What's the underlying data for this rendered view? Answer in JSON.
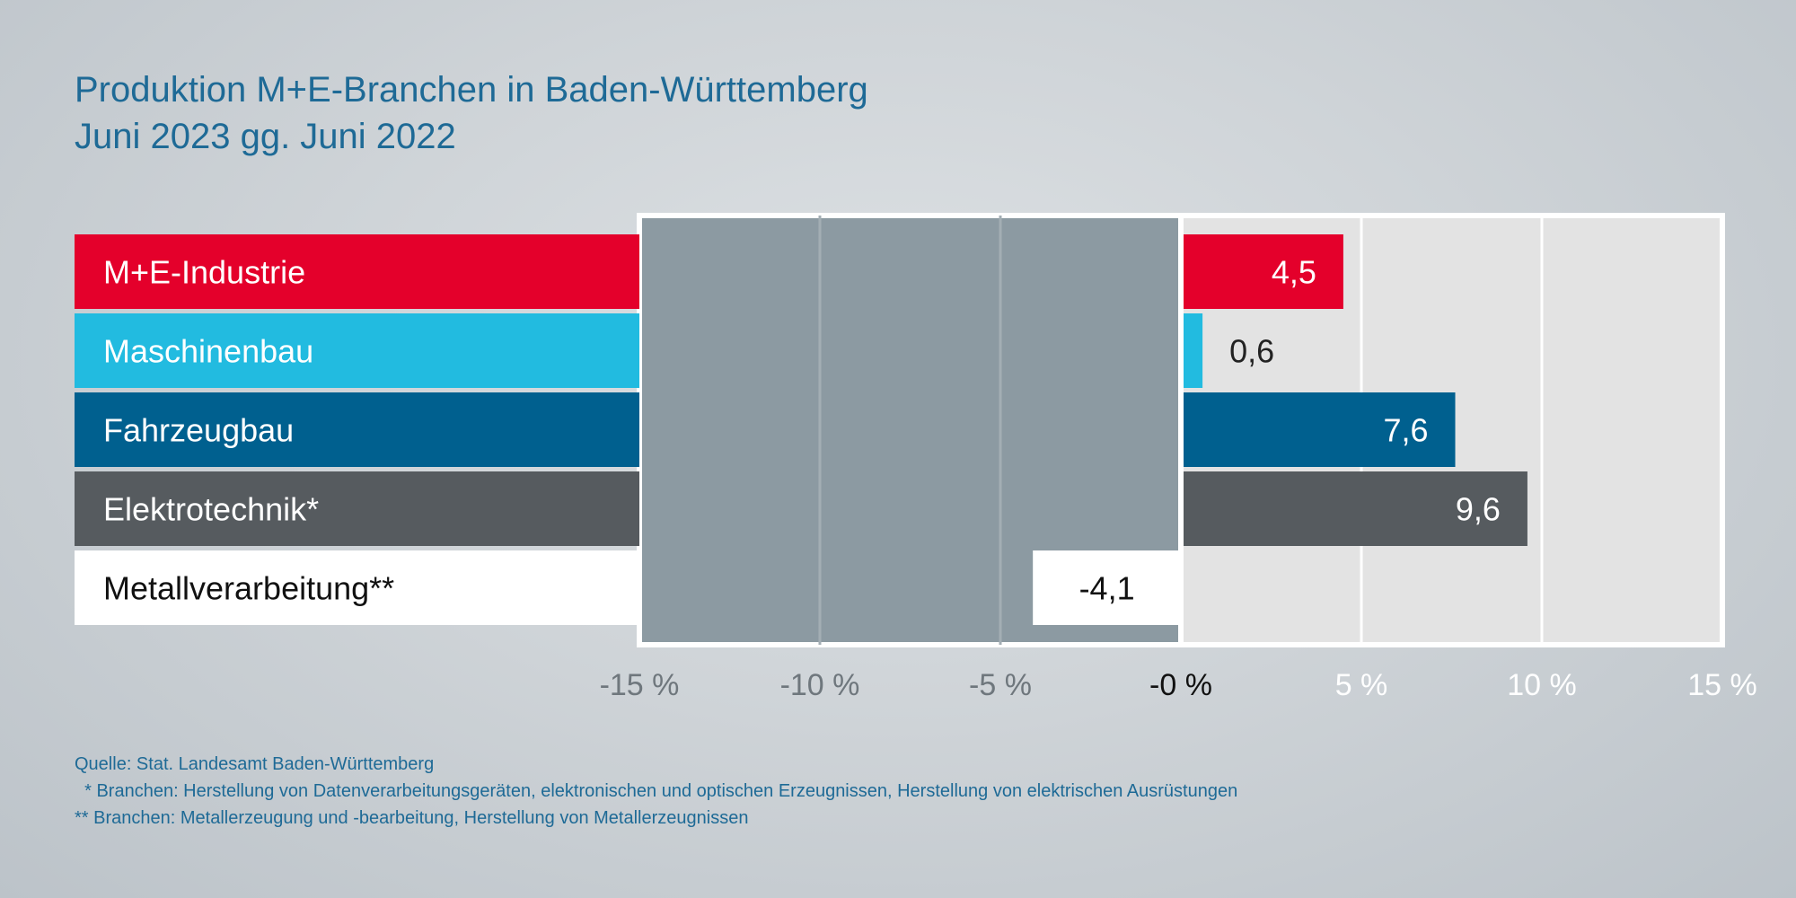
{
  "title": {
    "line1": "Produktion M+E-Branchen in Baden-Württemberg",
    "line2": "Juni 2023 gg. Juni 2022"
  },
  "chart_data": {
    "type": "bar",
    "orientation": "horizontal",
    "categories": [
      "M+E-Industrie",
      "Maschinenbau",
      "Fahrzeugbau",
      "Elektrotechnik*",
      "Metallverarbeitung**"
    ],
    "values": [
      4.5,
      0.6,
      7.6,
      9.6,
      -4.1
    ],
    "value_labels": [
      "4,5",
      "0,6",
      "7,6",
      "9,6",
      "-4,1"
    ],
    "colors": [
      "#e4002b",
      "#22bbe0",
      "#00608f",
      "#565b5f",
      "#ffffff"
    ],
    "label_text_colors": [
      "#ffffff",
      "#ffffff",
      "#ffffff",
      "#ffffff",
      "#111111"
    ],
    "xlim": [
      -15,
      15
    ],
    "ticks": [
      -15,
      -10,
      -5,
      0,
      5,
      10,
      15
    ],
    "tick_labels": [
      "-15 %",
      "-10 %",
      "-5 %",
      "-0 %",
      "5 %",
      "10 %",
      "15 %"
    ],
    "grid": true
  },
  "footer": {
    "source": "Quelle: Stat. Landesamt Baden-Württemberg",
    "note1": "  * Branchen: Herstellung von Datenverarbeitungsgeräten, elektronischen und optischen Erzeugnissen, Herstellung von elektrischen Ausrüstungen",
    "note2": "** Branchen: Metallerzeugung und -bearbeitung, Herstellung von Metallerzeugnissen"
  }
}
